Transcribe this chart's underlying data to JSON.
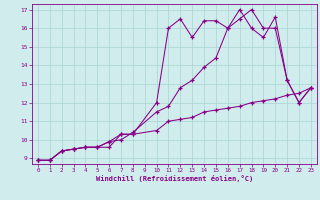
{
  "xlabel": "Windchill (Refroidissement éolien,°C)",
  "xlim": [
    -0.5,
    23.5
  ],
  "ylim": [
    8.7,
    17.3
  ],
  "xticks": [
    0,
    1,
    2,
    3,
    4,
    5,
    6,
    7,
    8,
    9,
    10,
    11,
    12,
    13,
    14,
    15,
    16,
    17,
    18,
    19,
    20,
    21,
    22,
    23
  ],
  "yticks": [
    9,
    10,
    11,
    12,
    13,
    14,
    15,
    16,
    17
  ],
  "line_color": "#880088",
  "bg_color": "#d0ecec",
  "grid_color": "#a8d4d4",
  "line1_x": [
    0,
    1,
    2,
    3,
    4,
    5,
    6,
    7,
    8,
    10,
    11,
    12,
    13,
    14,
    15,
    16,
    17,
    18,
    19,
    20,
    21,
    22,
    23
  ],
  "line1_y": [
    8.9,
    8.9,
    9.4,
    9.5,
    9.6,
    9.6,
    9.6,
    10.3,
    10.3,
    10.5,
    11.0,
    11.1,
    11.2,
    11.5,
    11.6,
    11.7,
    11.8,
    12.0,
    12.1,
    12.2,
    12.4,
    12.5,
    12.8
  ],
  "line2_x": [
    0,
    1,
    2,
    3,
    4,
    5,
    6,
    7,
    8,
    10,
    11,
    12,
    13,
    14,
    15,
    16,
    17,
    18,
    19,
    20,
    21,
    22,
    23
  ],
  "line2_y": [
    8.9,
    8.9,
    9.4,
    9.5,
    9.6,
    9.6,
    9.9,
    10.0,
    10.4,
    11.5,
    11.8,
    12.8,
    13.2,
    13.9,
    14.4,
    16.0,
    16.5,
    17.0,
    16.0,
    16.0,
    13.2,
    12.0,
    12.8
  ],
  "line3_x": [
    0,
    1,
    2,
    3,
    4,
    5,
    6,
    7,
    8,
    10,
    11,
    12,
    13,
    14,
    15,
    16,
    17,
    18,
    19,
    20,
    21,
    22,
    23
  ],
  "line3_y": [
    8.9,
    8.9,
    9.4,
    9.5,
    9.6,
    9.6,
    9.9,
    10.3,
    10.3,
    12.0,
    16.0,
    16.5,
    15.5,
    16.4,
    16.4,
    16.0,
    17.0,
    16.0,
    15.5,
    16.6,
    13.2,
    12.0,
    12.8
  ]
}
